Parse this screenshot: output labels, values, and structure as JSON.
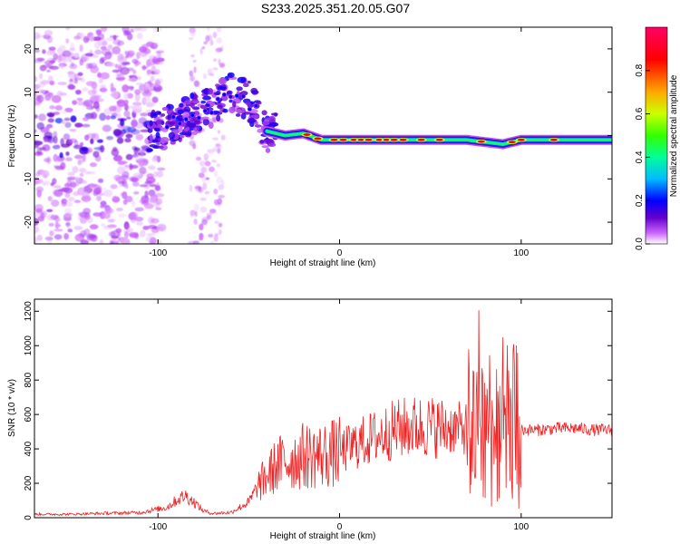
{
  "title": "S233.2025.351.20.05.G07",
  "chart_data": [
    {
      "type": "heatmap",
      "xlabel": "Height of straight line (km)",
      "ylabel": "Frequency (Hz)",
      "xlim": [
        -168,
        150
      ],
      "ylim": [
        -25,
        25
      ],
      "xticks": [
        -100,
        0,
        100
      ],
      "yticks": [
        -20,
        -10,
        0,
        10,
        20
      ],
      "colorbar": {
        "label": "Normalized spectral amplitude",
        "range": [
          0,
          1
        ],
        "ticks": [
          0.0,
          0.2,
          0.4,
          0.6,
          0.8
        ],
        "colormap": [
          "#ffffff",
          "#cc66ff",
          "#6600cc",
          "#0000ff",
          "#00bbff",
          "#00ff99",
          "#33ff00",
          "#ccff00",
          "#ffaa00",
          "#ff0000",
          "#ff0066"
        ]
      },
      "ridge": {
        "x": [
          -100,
          -90,
          -80,
          -70,
          -60,
          -50,
          -40,
          -30,
          -20,
          -10,
          0,
          20,
          40,
          60,
          70,
          80,
          90,
          100,
          120,
          150
        ],
        "frequency": [
          1,
          3,
          5,
          7,
          10,
          8,
          1,
          0,
          0.5,
          -1,
          -1,
          -1,
          -1,
          -1,
          -1,
          -1.5,
          -2,
          -1,
          -1,
          -1
        ]
      }
    },
    {
      "type": "line",
      "xlabel": "Height of straight line (km)",
      "ylabel": "SNR (10 * v/v)",
      "xlim": [
        -168,
        150
      ],
      "ylim": [
        0,
        1270
      ],
      "xticks": [
        -100,
        0,
        100
      ],
      "yticks": [
        0,
        200,
        400,
        600,
        800,
        1000,
        1200
      ],
      "series": [
        {
          "name": "SNR",
          "color": "#ee2222",
          "x": [
            -168,
            -150,
            -130,
            -110,
            -95,
            -90,
            -85,
            -80,
            -75,
            -70,
            -60,
            -50,
            -45,
            -40,
            -35,
            -30,
            -25,
            -20,
            -10,
            0,
            10,
            20,
            30,
            40,
            50,
            60,
            70,
            75,
            78,
            80,
            85,
            90,
            95,
            98,
            100,
            110,
            120,
            130,
            140,
            150
          ],
          "values": [
            20,
            20,
            25,
            30,
            60,
            100,
            130,
            90,
            40,
            25,
            30,
            90,
            180,
            240,
            300,
            330,
            340,
            360,
            360,
            380,
            430,
            470,
            510,
            530,
            530,
            520,
            520,
            550,
            600,
            560,
            540,
            560,
            540,
            530,
            510,
            510,
            520,
            520,
            510,
            510
          ]
        }
      ]
    }
  ]
}
